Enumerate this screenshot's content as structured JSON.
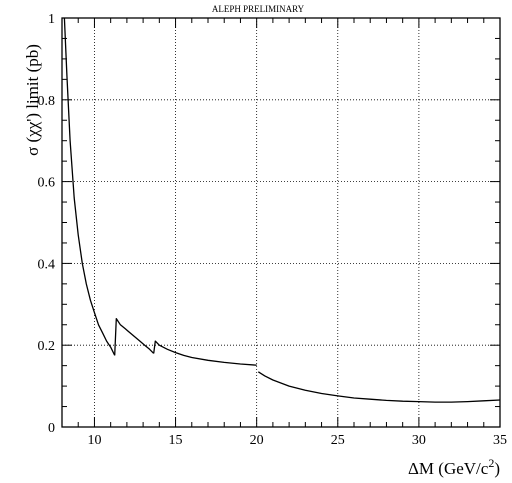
{
  "chart_data": {
    "type": "line",
    "title": "ALEPH PRELIMINARY",
    "ylabel": "σ (χχ') limit (pb)",
    "xlabel_main": "ΔM (GeV/c",
    "xlabel_sup": "2",
    "xlabel_close": ")",
    "xlim": [
      8,
      35
    ],
    "ylim": [
      0,
      1
    ],
    "x_ticks": [
      10,
      15,
      20,
      25,
      30,
      35
    ],
    "y_ticks": [
      0,
      0.2,
      0.4,
      0.6,
      0.8,
      1
    ],
    "x_tick_labels": [
      "10",
      "15",
      "20",
      "25",
      "30",
      "35"
    ],
    "y_tick_labels": [
      "0",
      "0.2",
      "0.4",
      "0.6",
      "0.8",
      "1"
    ],
    "grid": true,
    "series": [
      {
        "segments": [
          {
            "x": [
              8.15,
              8.3,
              8.5,
              8.75,
              9.0,
              9.25,
              9.5,
              9.75,
              10.0,
              10.25,
              10.5,
              10.75,
              11.0,
              11.25
            ],
            "y": [
              1.0,
              0.86,
              0.7,
              0.56,
              0.47,
              0.4,
              0.35,
              0.31,
              0.28,
              0.25,
              0.23,
              0.21,
              0.195,
              0.175
            ]
          },
          {
            "x": [
              11.25,
              11.35,
              11.6,
              11.9,
              12.2,
              12.5,
              12.8,
              13.1,
              13.4,
              13.65
            ],
            "y": [
              0.175,
              0.265,
              0.25,
              0.24,
              0.23,
              0.22,
              0.21,
              0.2,
              0.19,
              0.18
            ]
          },
          {
            "x": [
              13.65,
              13.75,
              14.0,
              14.5,
              15.0,
              15.5,
              16.0,
              17.0,
              18.0,
              19.0,
              20.0
            ],
            "y": [
              0.18,
              0.21,
              0.2,
              0.19,
              0.182,
              0.175,
              0.17,
              0.163,
              0.158,
              0.154,
              0.151
            ]
          },
          {
            "x": [
              20.1,
              20.5,
              21.0,
              22.0,
              23.0,
              24.0,
              25.0,
              26.0,
              27.0,
              28.0,
              29.0,
              30.0,
              31.0,
              32.0,
              33.0,
              34.0,
              35.0
            ],
            "y": [
              0.135,
              0.125,
              0.115,
              0.1,
              0.09,
              0.082,
              0.076,
              0.071,
              0.068,
              0.065,
              0.063,
              0.062,
              0.061,
              0.061,
              0.062,
              0.064,
              0.066
            ]
          }
        ]
      }
    ]
  }
}
